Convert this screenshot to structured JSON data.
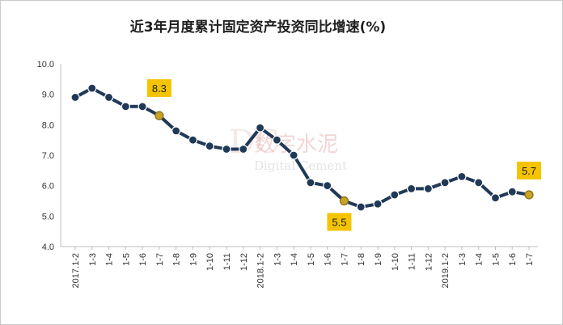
{
  "chart_data": {
    "type": "line",
    "title": "近3年月度累计固定资产投资同比增速(%)",
    "xlabel": "",
    "ylabel": "",
    "ylim": [
      4.0,
      10.0
    ],
    "yticks": [
      "10.0",
      "9.0",
      "8.0",
      "7.0",
      "6.0",
      "5.0",
      "4.0"
    ],
    "grid": false,
    "legend": "none",
    "categories": [
      "2017.1-2",
      "1-3",
      "1-4",
      "1-5",
      "1-6",
      "1-7",
      "1-8",
      "1-9",
      "1-10",
      "1-11",
      "1-12",
      "2018.1-2",
      "1-3",
      "1-4",
      "1-5",
      "1-6",
      "1-7",
      "1-8",
      "1-9",
      "1-10",
      "1-11",
      "1-12",
      "2019.1-2",
      "1-3",
      "1-4",
      "1-5",
      "1-6",
      "1-7"
    ],
    "series": [
      {
        "values": [
          8.9,
          9.2,
          8.9,
          8.6,
          8.6,
          8.3,
          7.8,
          7.5,
          7.3,
          7.2,
          7.2,
          7.9,
          7.5,
          7.0,
          6.1,
          6.0,
          5.5,
          5.3,
          5.4,
          5.7,
          5.9,
          5.9,
          6.1,
          6.3,
          6.1,
          5.6,
          5.8,
          5.7
        ],
        "color": "#203957"
      }
    ],
    "highlighted_points": [
      {
        "index": 5,
        "label": "8.3"
      },
      {
        "index": 16,
        "label": "5.5"
      },
      {
        "index": 27,
        "label": "5.7"
      }
    ],
    "colors": {
      "line": "#203957",
      "marker": "#203957",
      "highlight_marker": "#c9a227",
      "callout_fill": "#f5c400"
    },
    "watermark": {
      "cn": "数字水泥",
      "en": "Digital Cement",
      "logo": "DC"
    }
  }
}
